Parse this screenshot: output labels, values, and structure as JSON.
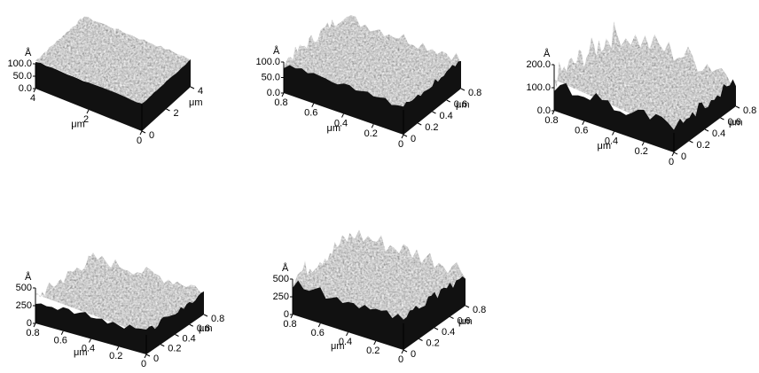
{
  "panels": [
    {
      "z_unit": "Å",
      "z_ticks": [
        "100.0",
        "50.0",
        "0.0"
      ],
      "front_ticks": [
        "4",
        "2",
        "0"
      ],
      "front_unit": "μm",
      "side_ticks": [
        "0",
        "2",
        "4"
      ],
      "side_unit": "μm"
    },
    {
      "z_unit": "Å",
      "z_ticks": [
        "100.0",
        "50.0",
        "0.0"
      ],
      "front_ticks": [
        "0.8",
        "0.6",
        "0.4",
        "0.2",
        "0"
      ],
      "front_unit": "μm",
      "side_ticks": [
        "0",
        "0.2",
        "0.4",
        "0.6",
        "0.8"
      ],
      "side_unit": "μm"
    },
    {
      "z_unit": "Å",
      "z_ticks": [
        "200.0",
        "100.0",
        "0.0"
      ],
      "front_ticks": [
        "0.8",
        "0.6",
        "0.4",
        "0.2",
        "0"
      ],
      "front_unit": "μm",
      "side_ticks": [
        "0",
        "0.2",
        "0.4",
        "0.6",
        "0.8"
      ],
      "side_unit": "μm"
    },
    {
      "z_unit": "Å",
      "z_ticks": [
        "500",
        "250",
        "0"
      ],
      "front_ticks": [
        "0.8",
        "0.6",
        "0.4",
        "0.2",
        "0"
      ],
      "front_unit": "μm",
      "side_ticks": [
        "0",
        "0.2",
        "0.4",
        "0.6",
        "0.8"
      ],
      "side_unit": "μm"
    },
    {
      "z_unit": "Å",
      "z_ticks": [
        "500",
        "250",
        "0"
      ],
      "front_ticks": [
        "0.8",
        "0.6",
        "0.4",
        "0.2",
        "0"
      ],
      "front_unit": "μm",
      "side_ticks": [
        "0",
        "0.2",
        "0.4",
        "0.6",
        "0.8"
      ],
      "side_unit": "μm"
    }
  ]
}
